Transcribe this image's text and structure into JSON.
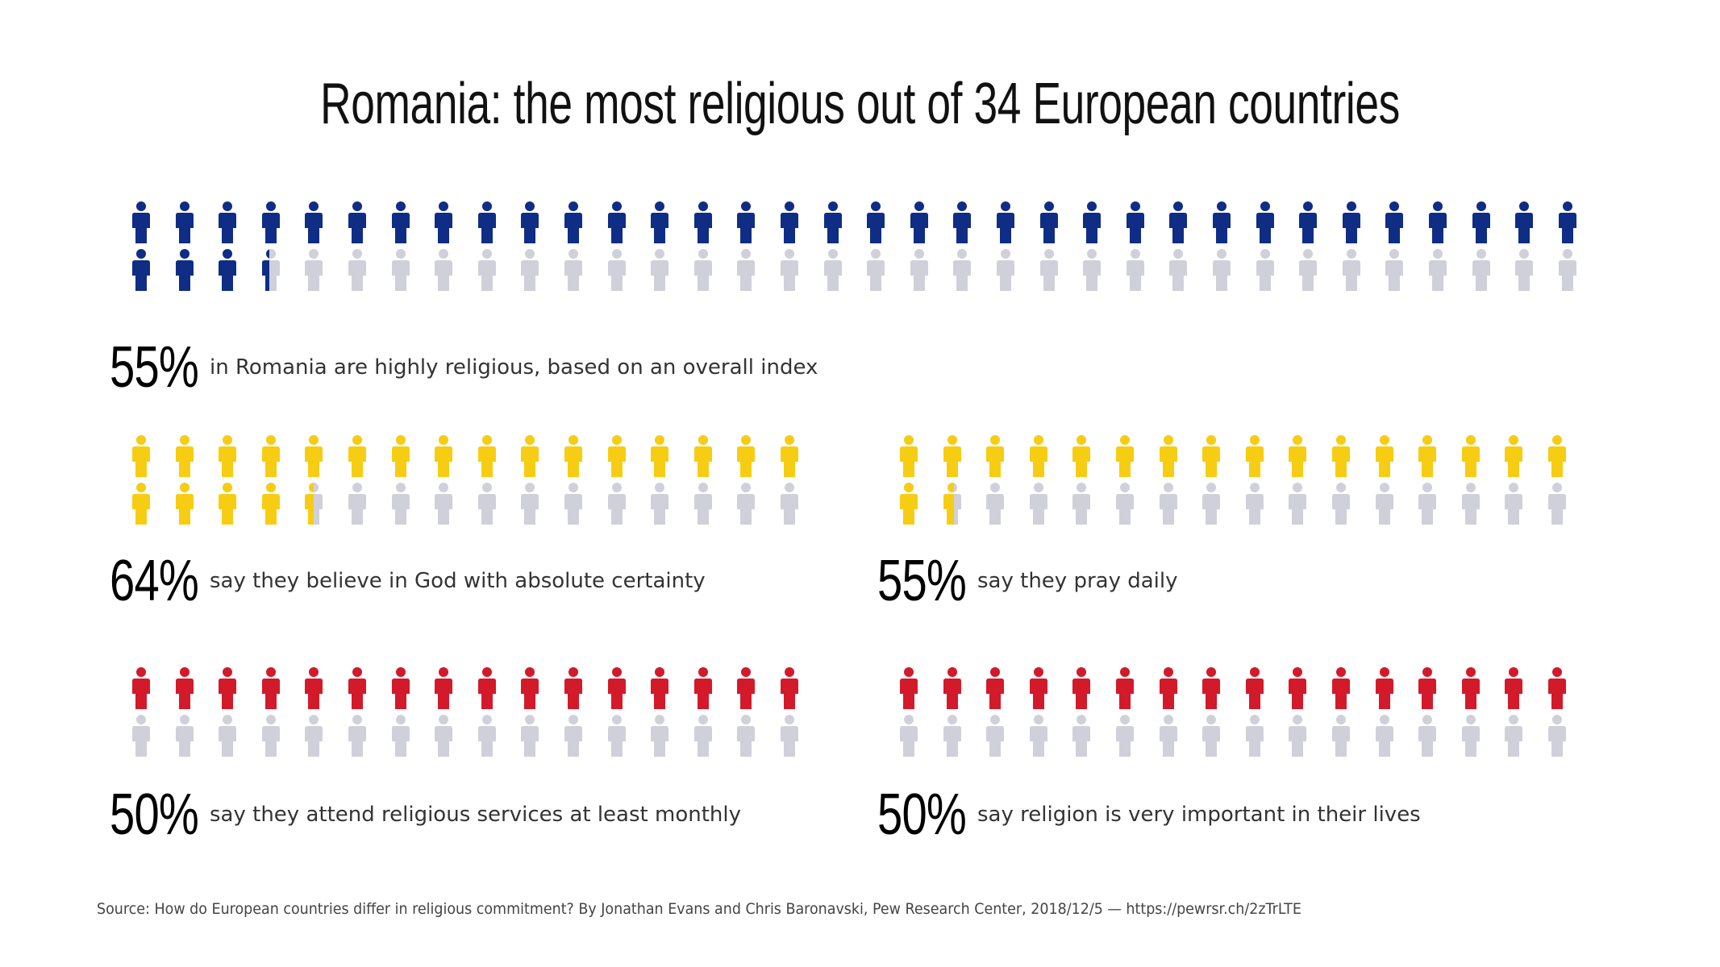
{
  "title": "Romania: the most religious out of 34 European countries",
  "colors": {
    "blue": "#0f2d85",
    "yellow": "#f7cd14",
    "red": "#d21a2b",
    "empty": "#d0d0da"
  },
  "chart_data": {
    "type": "pictograph",
    "title": "Romania: the most religious out of 34 European countries",
    "sections": [
      {
        "percent": 55,
        "percent_label": "55%",
        "description": "in Romania are highly religious, based on an overall index",
        "color": "#0f2d85",
        "icons_per_row": 34,
        "rows": 2
      },
      {
        "percent": 64,
        "percent_label": "64%",
        "description": "say they believe in God with absolute certainty",
        "color": "#f7cd14",
        "icons_per_row": 16,
        "rows": 2
      },
      {
        "percent": 55,
        "percent_label": "55%",
        "description": "say they pray daily",
        "color": "#f7cd14",
        "icons_per_row": 16,
        "rows": 2
      },
      {
        "percent": 50,
        "percent_label": "50%",
        "description": "say they attend religious services at least monthly",
        "color": "#d21a2b",
        "icons_per_row": 16,
        "rows": 2
      },
      {
        "percent": 50,
        "percent_label": "50%",
        "description": "say religion is very important in their lives",
        "color": "#d21a2b",
        "icons_per_row": 16,
        "rows": 2
      }
    ]
  },
  "source": "Source: How do European countries differ in religious commitment? By Jonathan Evans and Chris Baronavski, Pew Research Center, 2018/12/5 — https://pewrsr.ch/2zTrLTE"
}
